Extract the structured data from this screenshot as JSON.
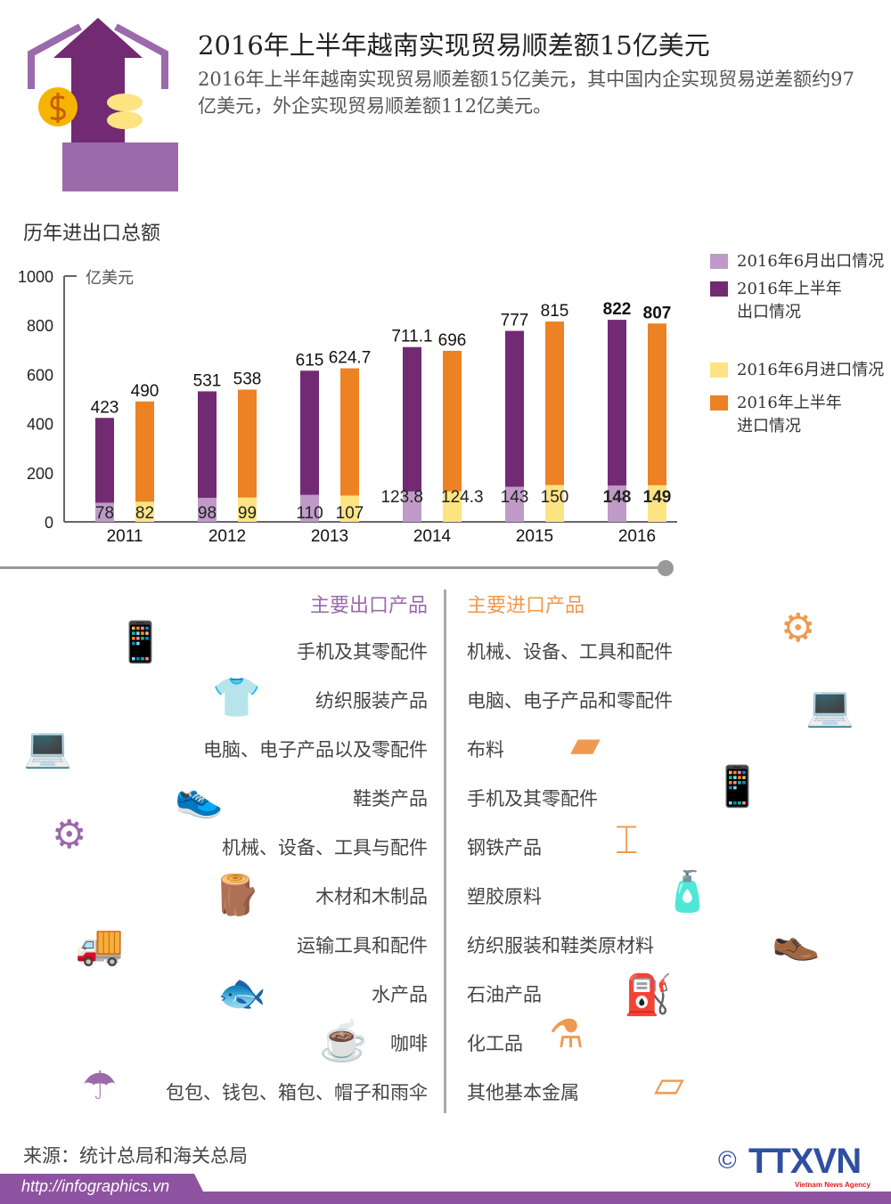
{
  "header": {
    "title": "2016年上半年越南实现贸易顺差额15亿美元",
    "subtitle": "2016年上半年越南实现贸易顺差额15亿美元，其中国内企实现贸易逆差额约97亿美元，外企实现贸易顺差额112亿美元。"
  },
  "chart_data": {
    "type": "bar",
    "title": "历年进出口总额",
    "ylabel": "亿美元",
    "ylim": [
      0,
      1000
    ],
    "yticks": [
      "0",
      "200",
      "400",
      "600",
      "800",
      "1000"
    ],
    "categories": [
      "2011",
      "2012",
      "2013",
      "2014",
      "2015",
      "2016"
    ],
    "series": [
      {
        "name": "2016年上半年出口情况",
        "color": "#722a73",
        "values": [
          423,
          531,
          615,
          711.1,
          777,
          822
        ],
        "labels": [
          "423",
          "531",
          "615",
          "711.1",
          "777",
          "822"
        ]
      },
      {
        "name": "2016年6月出口情况",
        "color": "#bf9ac7",
        "values": [
          78,
          98,
          110,
          123.8,
          143,
          148
        ],
        "labels": [
          "78",
          "98",
          "110",
          "123.8",
          "143",
          "148"
        ]
      },
      {
        "name": "2016年上半年进口情况",
        "color": "#ec8224",
        "values": [
          490,
          538,
          624.7,
          696,
          815,
          807
        ],
        "labels": [
          "490",
          "538",
          "624.7",
          "696",
          "815",
          "807"
        ]
      },
      {
        "name": "2016年6月进口情况",
        "color": "#fde483",
        "values": [
          82,
          99,
          107,
          124.3,
          150,
          149
        ],
        "labels": [
          "82",
          "99",
          "107",
          "124.3",
          "150",
          "149"
        ]
      }
    ],
    "legend": {
      "position": "right",
      "items": [
        {
          "label": "2016年6月出口情况",
          "color": "#bf9ac7"
        },
        {
          "label": "2016年上半年出口情况",
          "color": "#722a73"
        },
        {
          "label": "2016年6月进口情况",
          "color": "#fde483"
        },
        {
          "label": "2016年上半年进口情况",
          "color": "#ec8224"
        }
      ]
    }
  },
  "exports": {
    "heading": "主要出口产品",
    "items": [
      "手机及其零配件",
      "纺织服装产品",
      "电脑、电子产品以及零配件",
      "鞋类产品",
      "机械、设备、工具与配件",
      "木材和木制品",
      "运输工具和配件",
      "水产品",
      "咖啡",
      "包包、钱包、箱包、帽子和雨伞"
    ]
  },
  "imports": {
    "heading": "主要进口产品",
    "items": [
      "机械、设备、工具和配件",
      "电脑、电子产品和零配件",
      "布料",
      "手机及其零配件",
      "钢铁产品",
      "塑胶原料",
      "纺织服装和鞋类原材料",
      "石油产品",
      "化工品",
      "其他基本金属"
    ]
  },
  "footer": {
    "source": "来源：统计总局和海关总局",
    "url": "http://infographics.vn",
    "logo": "TTXVN",
    "logo_sub": "Vietnam News Agency",
    "copyright": "©"
  },
  "colors": {
    "purple": "#8e53a0",
    "orange": "#ef9a50"
  }
}
